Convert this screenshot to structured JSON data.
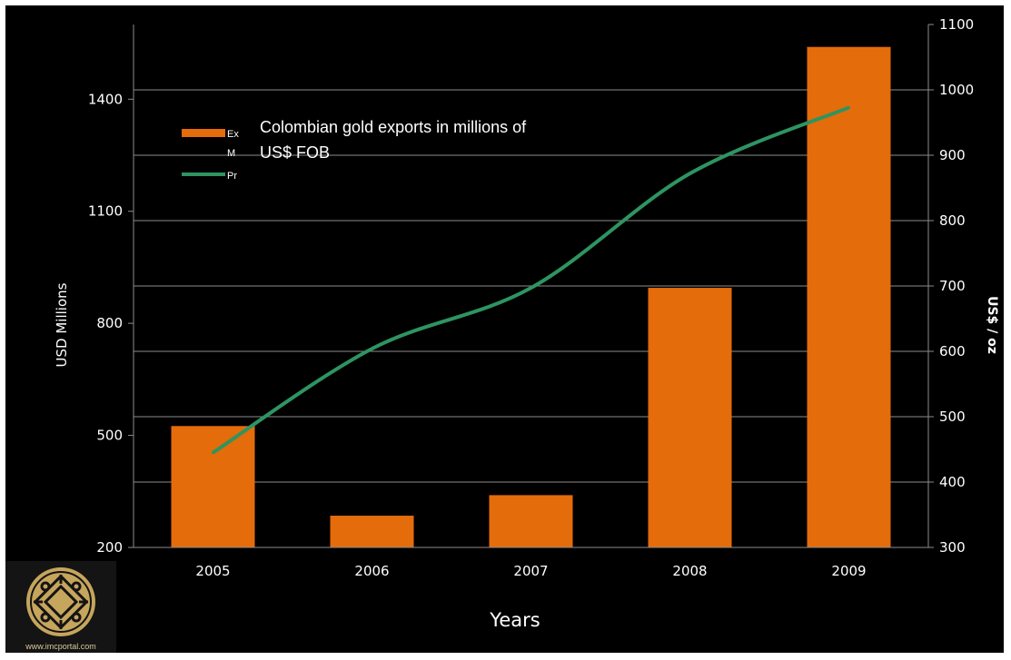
{
  "chart_data": {
    "type": "bar",
    "title": "Colombian gold exports in millions of US$ FOB",
    "categories": [
      "2005",
      "2006",
      "2007",
      "2008",
      "2009"
    ],
    "xlabel": "Years",
    "ylabel": "USD Millions",
    "ylim": [
      200,
      1600
    ],
    "yticks": [
      200,
      500,
      800,
      1100,
      1400
    ],
    "y2label": "US$ / oz",
    "y2lim": [
      300,
      1100
    ],
    "y2ticks": [
      300,
      400,
      500,
      600,
      700,
      800,
      900,
      1000,
      1100
    ],
    "series": [
      {
        "name": "Ex M",
        "type": "bar",
        "axis": "left",
        "color": "#e46c0a",
        "values": [
          525,
          285,
          340,
          895,
          1540
        ]
      },
      {
        "name": "Pr",
        "type": "line",
        "axis": "right",
        "color": "#2e9461",
        "values": [
          445,
          604,
          697,
          872,
          973
        ]
      }
    ],
    "legend": {
      "position": "top-left",
      "entries": [
        "Ex M",
        "Pr"
      ]
    },
    "grid": true
  },
  "legend_labels": {
    "bar_line1": "Ex",
    "bar_line2": "M",
    "line": "Pr"
  },
  "title_lines": [
    "Colombian gold exports in millions of",
    "US$ FOB"
  ],
  "logo": {
    "icon": "imc-emblem-icon",
    "url_text": "www.imcportal.com",
    "color": "#c6a55c"
  }
}
